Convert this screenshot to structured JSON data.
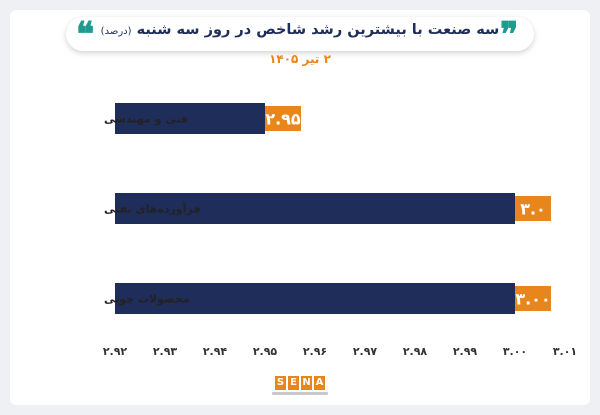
{
  "header": {
    "title": "سه صنعت با بیشترین رشد شاخص در روز سه شنبه",
    "unit": "(درصد)",
    "date": "۲ تیر ۱۴۰۵",
    "quote_left_icon": "quote-open-icon",
    "quote_right_icon": "quote-close-icon"
  },
  "colors": {
    "bar": "#1f2d5a",
    "label_box": "#e8861c",
    "accent": "#1e9a8f",
    "title": "#1f2d5a"
  },
  "chart_data": {
    "type": "bar",
    "orientation": "horizontal",
    "categories": [
      "فنی و مهندسی",
      "فرآورده‌های نفتی",
      "محصولات چوبی"
    ],
    "values": [
      2.95,
      3.0,
      3.0
    ],
    "data_labels": [
      "۲.۹۵",
      "۳.۰",
      "۳.۰۰"
    ],
    "xlim": [
      2.92,
      3.01
    ],
    "x_ticks": [
      2.92,
      2.93,
      2.94,
      2.95,
      2.96,
      2.97,
      2.98,
      2.99,
      3.0,
      3.01
    ],
    "x_tick_labels": [
      "۲.۹۲",
      "۲.۹۳",
      "۲.۹۴",
      "۲.۹۵",
      "۲.۹۶",
      "۲.۹۷",
      "۲.۹۸",
      "۲.۹۹",
      "۳.۰۰",
      "۳.۰۱"
    ],
    "grid": false,
    "legend": "none"
  },
  "footer": {
    "logo_text": "SENA"
  }
}
